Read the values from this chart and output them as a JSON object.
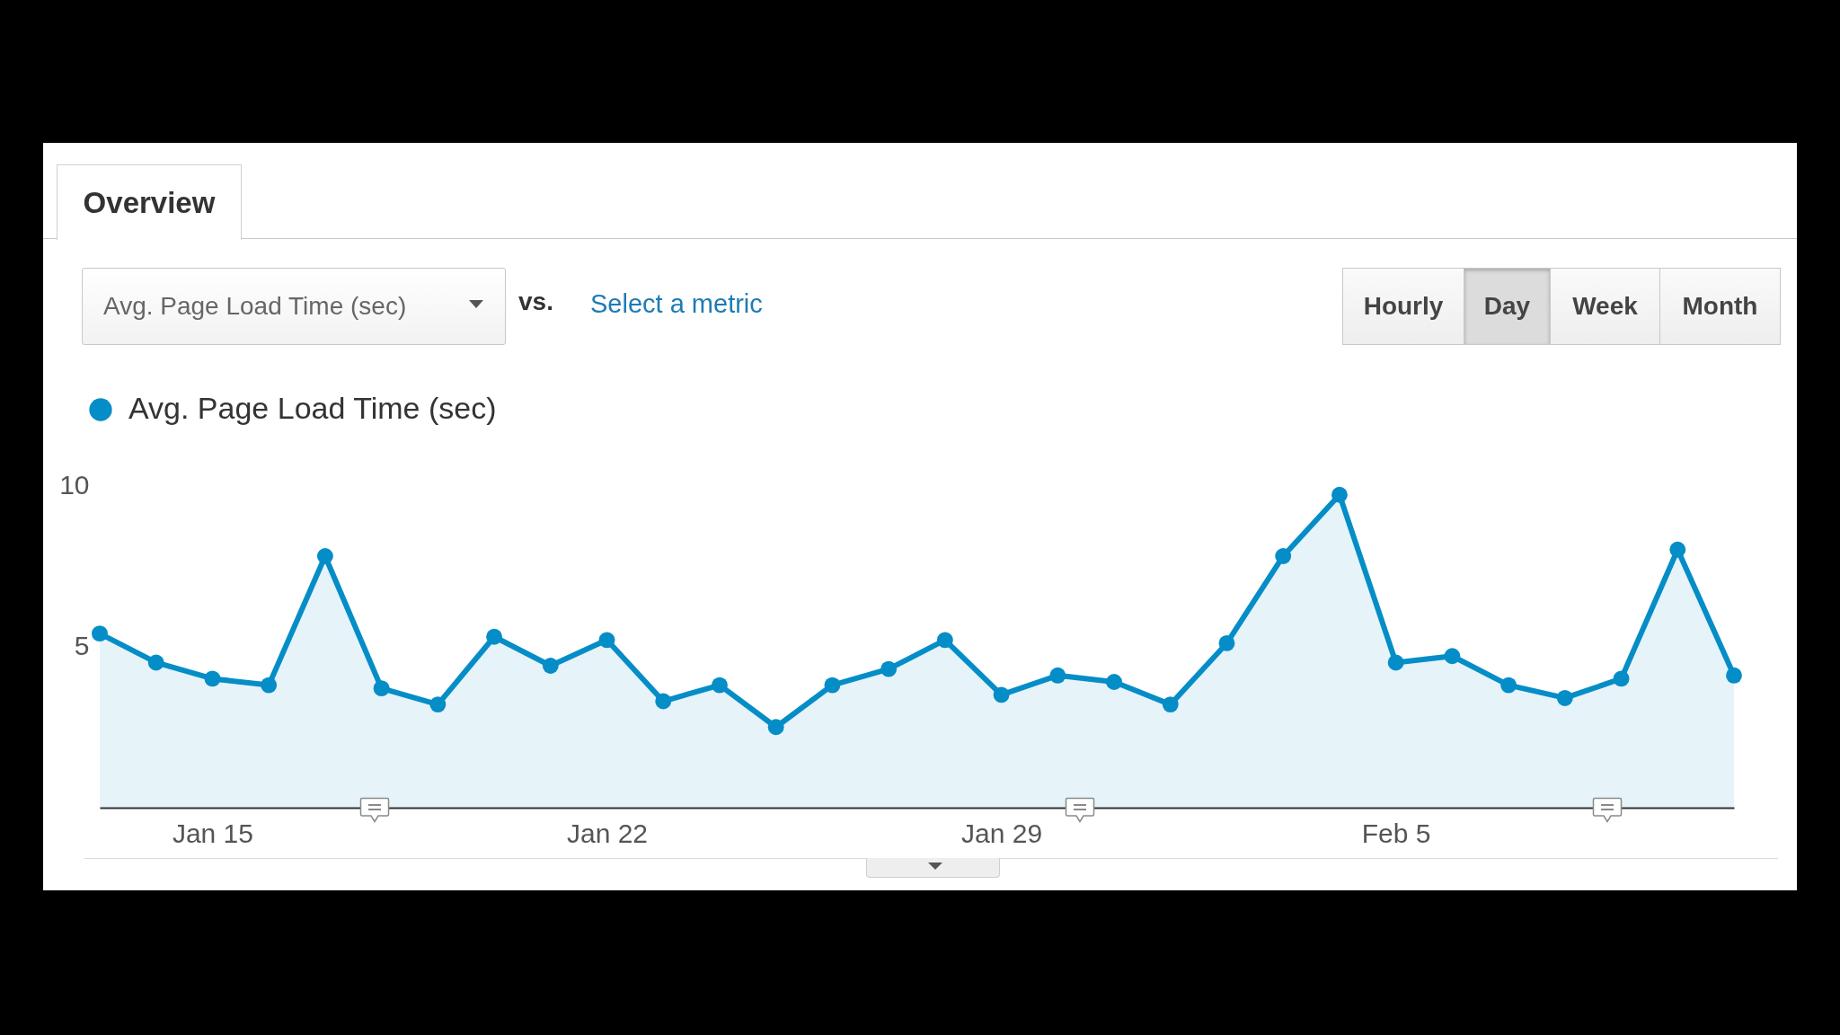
{
  "chart_data": {
    "type": "area",
    "title": "Overview",
    "x": [
      "--01-13",
      "--01-14",
      "--01-15",
      "--01-16",
      "--01-17",
      "--01-18",
      "--01-19",
      "--01-20",
      "--01-21",
      "--01-22",
      "--01-23",
      "--01-24",
      "--01-25",
      "--01-26",
      "--01-27",
      "--01-28",
      "--01-29",
      "--01-30",
      "--01-31",
      "--02-01",
      "--02-02",
      "--02-03",
      "--02-04",
      "--02-05",
      "--02-06",
      "--02-07",
      "--02-08",
      "--02-09",
      "--02-10",
      "--02-11"
    ],
    "series": [
      {
        "name": "Avg. Page Load Time (sec)",
        "color": "#058dc7",
        "values": [
          5.4,
          4.5,
          4.0,
          3.8,
          7.8,
          3.7,
          3.2,
          5.3,
          4.4,
          5.2,
          3.3,
          3.8,
          2.5,
          3.8,
          4.3,
          5.2,
          3.5,
          4.1,
          3.9,
          3.2,
          5.1,
          7.8,
          9.7,
          4.5,
          4.7,
          3.8,
          3.4,
          4.0,
          8.0,
          4.1
        ]
      }
    ],
    "xlim": [
      "--01-13",
      "--02-11"
    ],
    "xticks": [
      {
        "value": "--01-15",
        "label": "Jan 15"
      },
      {
        "value": "--01-22",
        "label": "Jan 22"
      },
      {
        "value": "--01-29",
        "label": "Jan 29"
      },
      {
        "value": "--02-05",
        "label": "Feb 5"
      }
    ],
    "ylim": [
      0,
      10
    ],
    "yticks": [
      5,
      10
    ],
    "legend": "top left",
    "marker": "circle",
    "annotations": [
      "Avg. Page Load Time (sec)",
      "vs.",
      "Select a metric",
      "Hourly",
      "Day",
      "Week",
      "Month"
    ]
  }
}
